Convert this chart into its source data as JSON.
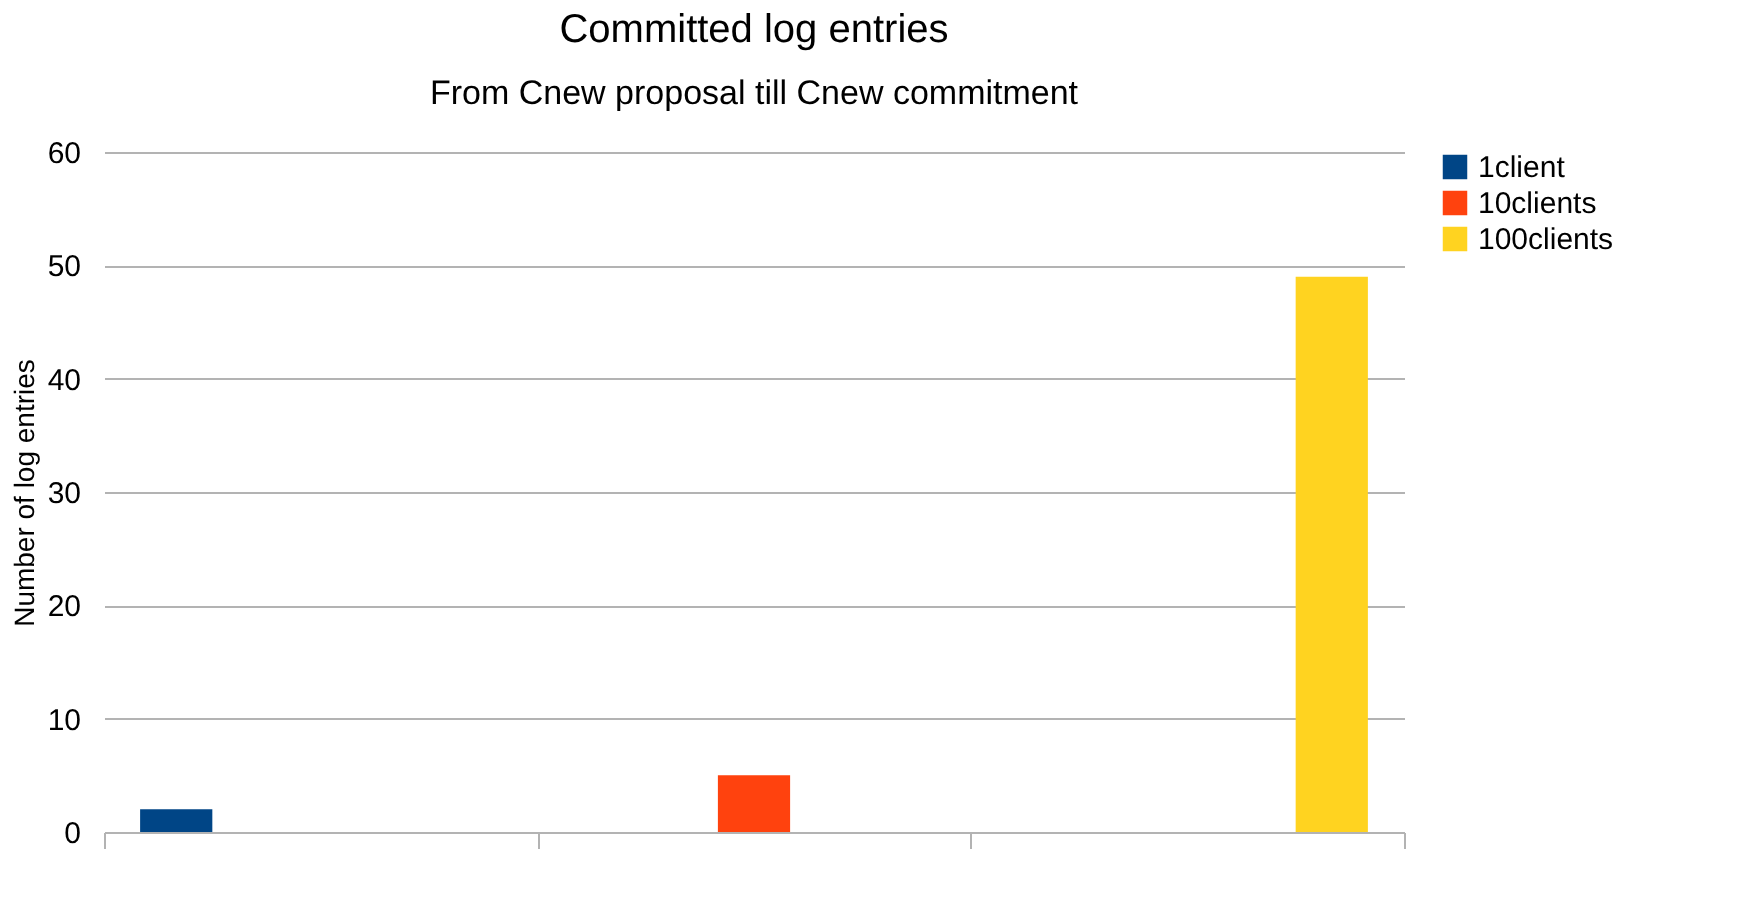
{
  "chart_data": {
    "type": "bar",
    "title": "Committed log entries",
    "subtitle": "From Cnew proposal till Cnew commitment",
    "ylabel": "Number of log entries",
    "categories": [
      null,
      null,
      null
    ],
    "series": [
      {
        "name": "1client",
        "color": "#004586",
        "values": [
          2,
          null,
          null
        ]
      },
      {
        "name": "10clients",
        "color": "#ff420e",
        "values": [
          null,
          5,
          null
        ]
      },
      {
        "name": "100clients",
        "color": "#ffd320",
        "values": [
          null,
          null,
          49
        ]
      }
    ],
    "ylim": [
      0,
      60
    ],
    "yticks": [
      0,
      10,
      20,
      30,
      40,
      50,
      60
    ],
    "grid": "y",
    "legend": "right"
  }
}
